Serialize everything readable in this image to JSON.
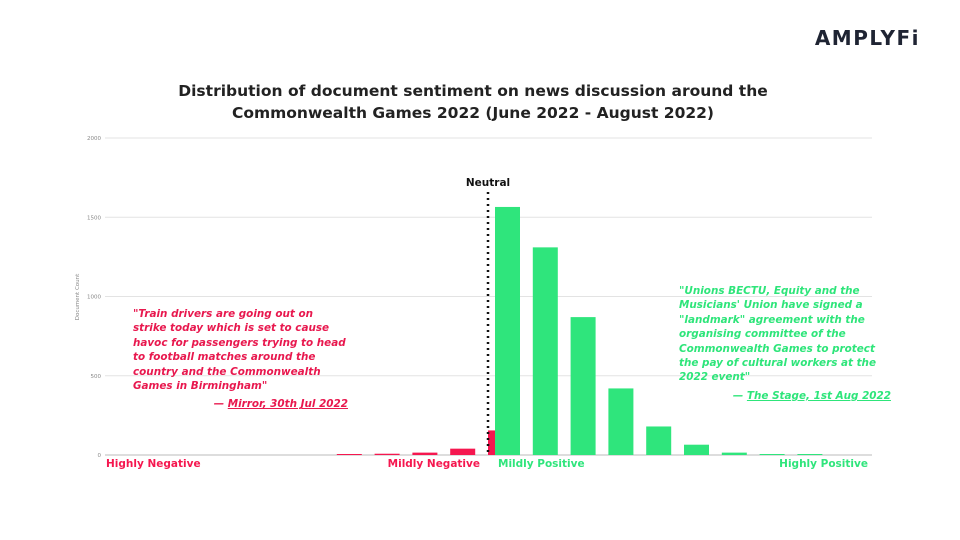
{
  "brand": {
    "logo_text": "AMPLYFi"
  },
  "chart_data": {
    "type": "bar",
    "title_lines": [
      "Distribution of document sentiment on news discussion around the",
      "Commonwealth Games 2022 (June 2022 - August 2022)"
    ],
    "ylabel": "Document Count",
    "xlabel": "",
    "ylim": [
      0,
      2000
    ],
    "yticks": [
      0,
      500,
      1000,
      1500,
      2000
    ],
    "grid": true,
    "neutral_label": "Neutral",
    "sentiment_labels": {
      "highly_negative": "Highly Negative",
      "mildly_negative": "Mildly Negative",
      "mildly_positive": "Mildly Positive",
      "highly_positive": "Highly Positive"
    },
    "colors": {
      "negative": "#f5174f",
      "positive": "#2fe57c",
      "grid": "#e3e3e3",
      "axis": "#bbbbbb"
    },
    "negative_series": {
      "name": "",
      "values": [
        0,
        0,
        0,
        0,
        0,
        0,
        2,
        8,
        15,
        40,
        155
      ]
    },
    "positive_series": {
      "name": "",
      "values": [
        1565,
        1310,
        870,
        420,
        180,
        65,
        15,
        3,
        1,
        0
      ]
    }
  },
  "quotes": {
    "negative": {
      "text": "\"Train drivers are going out on strike today which is set to cause havoc for passengers trying to head to football matches around the country and the Commonwealth Games in Birmingham\"",
      "source_prefix": "— ",
      "source_name": "Mirror, 30th Jul 2022"
    },
    "positive": {
      "text": "\"Unions BECTU, Equity and the Musicians' Union have signed a \"landmark\" agreement with the organising committee of the Commonwealth Games to protect the pay of cultural workers at the 2022 event\"",
      "source_prefix": "— ",
      "source_name": "The Stage, 1st Aug 2022"
    }
  }
}
